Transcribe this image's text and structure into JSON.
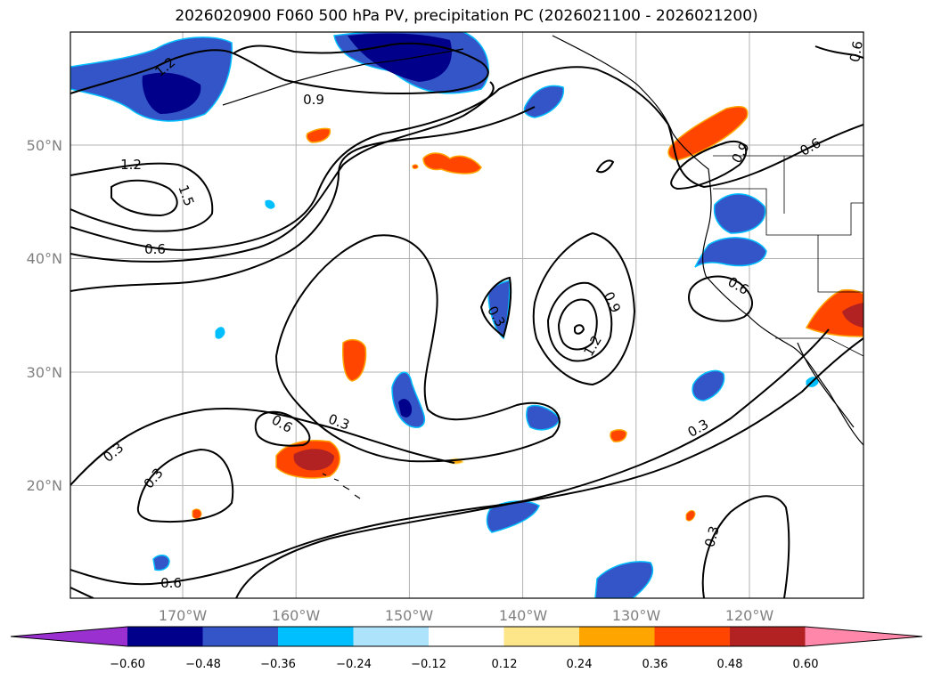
{
  "chart_data": {
    "type": "map",
    "title": "2026020900 F060 500 hPa PV, precipitation PC (2026021100 - 2026021200)",
    "lon_ticks": [
      "170°W",
      "160°W",
      "150°W",
      "140°W",
      "130°W",
      "120°W"
    ],
    "lat_ticks": [
      "50°N",
      "40°N",
      "30°N",
      "20°N"
    ],
    "grid": true,
    "contour_levels": [
      0.3,
      0.6,
      0.9,
      1.2,
      1.5
    ],
    "contour_labels": [
      "1.2",
      "0.9",
      "1.2",
      "1.5",
      "0.6",
      "0.3",
      "0.9",
      "1.2",
      "0.6",
      "0.6",
      "0.3",
      "0.6",
      "0.3",
      "0.3",
      "0.3",
      "0.6",
      "0.3",
      "0.9",
      "0.6"
    ],
    "colorbar": {
      "extend": "both",
      "tick_labels": [
        "−0.60",
        "−0.48",
        "−0.36",
        "−0.24",
        "−0.12",
        "0.12",
        "0.24",
        "0.36",
        "0.48",
        "0.60"
      ],
      "colors": [
        "#9b30d0",
        "#00008b",
        "#3455c8",
        "#00bfff",
        "#aee4fb",
        "#ffffff",
        "#fde68a",
        "#ffa500",
        "#ff4500",
        "#b22222",
        "#ff88aa"
      ]
    }
  }
}
